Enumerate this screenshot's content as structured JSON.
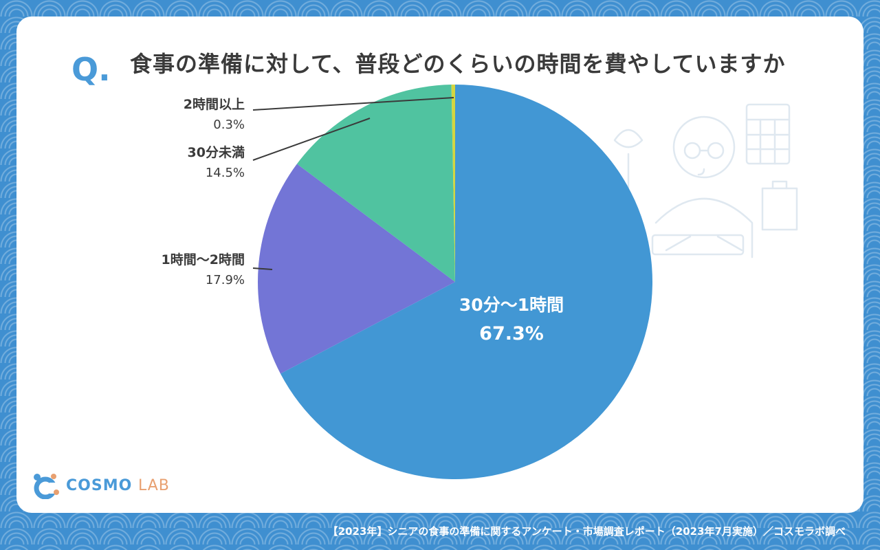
{
  "question": {
    "mark": "Q.",
    "text": "食事の準備に対して、普段どのくらいの時間を費やしていますか"
  },
  "chart_data": {
    "type": "pie",
    "slices": [
      {
        "label": "30分〜1時間",
        "value": 67.3,
        "value_label": "67.3%",
        "color": "#4297d4"
      },
      {
        "label": "1時間〜2時間",
        "value": 17.9,
        "value_label": "17.9%",
        "color": "#7375d6"
      },
      {
        "label": "30分未満",
        "value": 14.5,
        "value_label": "14.5%",
        "color": "#50c3a0"
      },
      {
        "label": "2時間以上",
        "value": 0.3,
        "value_label": "0.3%",
        "color": "#d4d640"
      }
    ],
    "start_angle_deg": 0,
    "direction": "clockwise",
    "legend": "none"
  },
  "logo": {
    "name_main": "COSMO",
    "name_sub": "LAB"
  },
  "footer": {
    "source": "【2023年】シニアの食事の準備に関するアンケート・市場調査レポート（2023年7月実施）／コスモラボ調べ"
  },
  "colors": {
    "background": "#3f8fd0",
    "accent": "#4a9ad8",
    "text": "#3a3a3a"
  },
  "icons": [
    "cooking-senior-illustration",
    "cosmo-lab-logo-icon"
  ]
}
